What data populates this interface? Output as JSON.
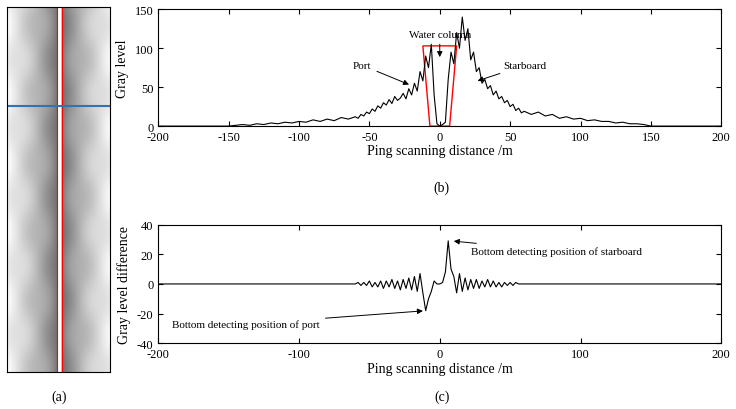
{
  "chart_data": [
    {
      "type": "image",
      "caption": "(a)"
    },
    {
      "type": "line",
      "caption": "(b)",
      "color": "#000000",
      "x_label": "Ping scanning distance /m",
      "y_label": "Gray level",
      "xlim": [
        -200,
        200
      ],
      "xticks": [
        -200,
        -150,
        -100,
        -50,
        0,
        50,
        100,
        150,
        200
      ],
      "ylim": [
        0,
        150
      ],
      "yticks": [
        0,
        50,
        100,
        150
      ],
      "x": [
        -200,
        -150,
        -145,
        -140,
        -135,
        -130,
        -125,
        -120,
        -115,
        -110,
        -105,
        -100,
        -95,
        -90,
        -85,
        -80,
        -75,
        -70,
        -65,
        -60,
        -58,
        -56,
        -54,
        -52,
        -50,
        -48,
        -46,
        -44,
        -42,
        -40,
        -38,
        -36,
        -34,
        -32,
        -30,
        -28,
        -26,
        -24,
        -22,
        -20,
        -18,
        -16,
        -14,
        -12,
        -10,
        -8,
        -6,
        -4,
        -2,
        0,
        2,
        4,
        6,
        8,
        10,
        12,
        14,
        16,
        18,
        20,
        22,
        24,
        26,
        28,
        30,
        32,
        34,
        36,
        38,
        40,
        42,
        44,
        46,
        48,
        50,
        52,
        54,
        56,
        58,
        60,
        65,
        70,
        75,
        80,
        85,
        90,
        95,
        100,
        105,
        110,
        115,
        120,
        125,
        130,
        135,
        140,
        145,
        150,
        200
      ],
      "values": [
        0,
        0,
        1,
        2,
        1,
        3,
        2,
        4,
        3,
        5,
        4,
        6,
        5,
        8,
        6,
        9,
        7,
        11,
        9,
        12,
        10,
        15,
        13,
        18,
        16,
        22,
        19,
        26,
        23,
        30,
        27,
        34,
        29,
        38,
        33,
        36,
        42,
        35,
        48,
        40,
        55,
        45,
        70,
        58,
        90,
        75,
        105,
        40,
        3,
        0,
        2,
        5,
        60,
        95,
        80,
        120,
        100,
        140,
        110,
        125,
        85,
        95,
        70,
        75,
        55,
        60,
        48,
        52,
        40,
        45,
        35,
        38,
        30,
        33,
        25,
        28,
        20,
        23,
        17,
        19,
        15,
        18,
        13,
        15,
        10,
        12,
        9,
        10,
        7,
        8,
        6,
        6,
        4,
        5,
        3,
        3,
        2,
        0,
        0
      ],
      "water_column_box": {
        "color": "#ff0000",
        "x": [
          -7,
          -12,
          12,
          7
        ],
        "y": [
          0,
          103,
          103,
          0
        ]
      },
      "annotations": [
        {
          "text": "Port",
          "x": -20,
          "y": 52,
          "text_x": -55,
          "text_y": 78
        },
        {
          "text": "Water column",
          "x": 0,
          "y": 85,
          "text_x": 0,
          "text_y": 118
        },
        {
          "text": "Starboard",
          "x": 25,
          "y": 57,
          "text_x": 45,
          "text_y": 78
        }
      ]
    },
    {
      "type": "line",
      "caption": "(c)",
      "color": "#000000",
      "x_label": "Ping scanning distance /m",
      "y_label": "Gray level difference",
      "xlim": [
        -200,
        200
      ],
      "xticks": [
        -200,
        -100,
        0,
        100,
        200
      ],
      "ylim": [
        -40,
        40
      ],
      "yticks": [
        -40,
        -20,
        0,
        20,
        40
      ],
      "x": [
        -200,
        -60,
        -58,
        -56,
        -54,
        -52,
        -50,
        -48,
        -46,
        -44,
        -42,
        -40,
        -38,
        -36,
        -34,
        -32,
        -30,
        -28,
        -26,
        -24,
        -22,
        -20,
        -18,
        -16,
        -14,
        -12,
        -10,
        -8,
        -6,
        -4,
        -2,
        0,
        2,
        4,
        6,
        8,
        10,
        12,
        14,
        16,
        18,
        20,
        22,
        24,
        26,
        28,
        30,
        32,
        34,
        36,
        38,
        40,
        42,
        44,
        46,
        48,
        50,
        52,
        54,
        56,
        58,
        60,
        200
      ],
      "values": [
        0,
        0,
        1,
        -1,
        1,
        -1,
        2,
        -2,
        1,
        -2,
        2,
        -3,
        2,
        -2,
        3,
        -3,
        2,
        -4,
        3,
        -3,
        4,
        -4,
        5,
        -5,
        7,
        -6,
        -18,
        -10,
        -5,
        2,
        0,
        0,
        1,
        8,
        29,
        10,
        5,
        -6,
        7,
        -5,
        4,
        -4,
        3,
        -3,
        3,
        -3,
        2,
        -2,
        3,
        -2,
        2,
        -2,
        1,
        -2,
        1,
        -1,
        1,
        -1,
        1,
        0,
        0,
        0,
        0
      ],
      "annotations": [
        {
          "text": "Bottom detecting position of starboard",
          "x": 8,
          "y": 29,
          "text_x": 22,
          "text_y": 22
        },
        {
          "text": "Bottom detecting position of port",
          "x": -10,
          "y": -18,
          "text_x": -190,
          "text_y": -27
        }
      ]
    }
  ]
}
